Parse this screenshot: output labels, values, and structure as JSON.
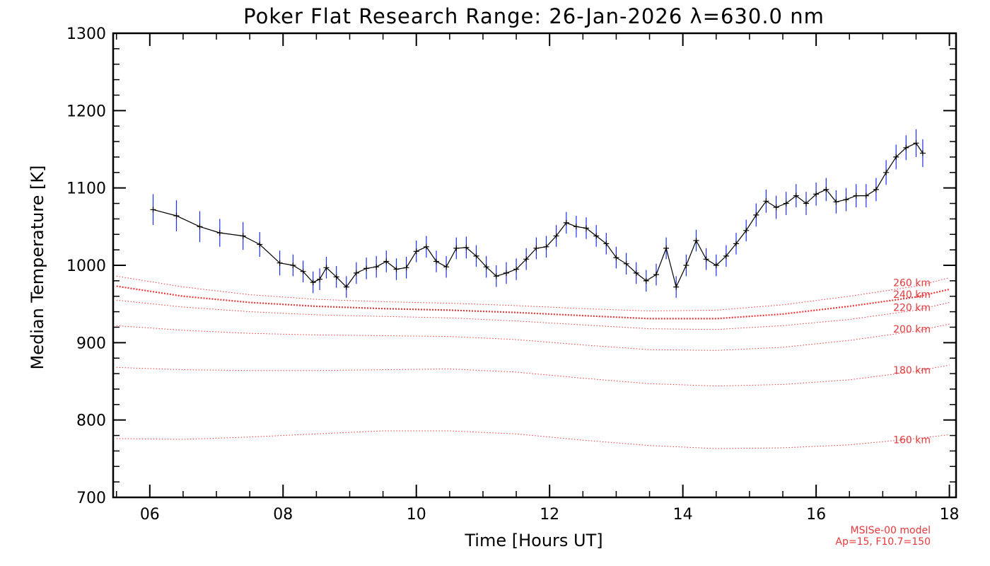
{
  "chart_data": {
    "type": "line",
    "title": "Poker Flat Research Range: 26-Jan-2026 λ=630.0 nm",
    "xlabel": "Time [Hours UT]",
    "ylabel": "Median Temperature [K]",
    "xlim": [
      5.45,
      18.1
    ],
    "ylim": [
      700,
      1300
    ],
    "xticks": [
      6,
      8,
      10,
      12,
      14,
      16,
      18
    ],
    "xtick_labels": [
      "06",
      "08",
      "10",
      "12",
      "14",
      "16",
      "18"
    ],
    "yticks": [
      700,
      800,
      900,
      1000,
      1100,
      1200,
      1300
    ],
    "ytick_labels": [
      "700",
      "800",
      "900",
      "1000",
      "1100",
      "1200",
      "1300"
    ],
    "model_note_line1": "MSISe-00 model",
    "model_note_line2": "Ap=15, F10.7=150",
    "colors": {
      "data": "#000000",
      "errorbar": "#1a2ff0",
      "model": "#e8383b"
    },
    "measured": {
      "name": "Median temperature",
      "x": [
        6.05,
        6.4,
        6.75,
        7.05,
        7.4,
        7.65,
        7.95,
        8.15,
        8.3,
        8.45,
        8.55,
        8.65,
        8.8,
        8.95,
        9.1,
        9.25,
        9.4,
        9.55,
        9.7,
        9.85,
        10.0,
        10.15,
        10.3,
        10.45,
        10.6,
        10.75,
        10.9,
        11.05,
        11.2,
        11.35,
        11.5,
        11.65,
        11.8,
        11.95,
        12.1,
        12.25,
        12.4,
        12.55,
        12.7,
        12.85,
        13.0,
        13.15,
        13.3,
        13.45,
        13.6,
        13.75,
        13.9,
        14.05,
        14.2,
        14.35,
        14.5,
        14.65,
        14.8,
        14.95,
        15.1,
        15.25,
        15.4,
        15.55,
        15.7,
        15.85,
        16.0,
        16.15,
        16.3,
        16.45,
        16.6,
        16.75,
        16.9,
        17.05,
        17.2,
        17.35,
        17.5,
        17.6
      ],
      "y": [
        1072,
        1064,
        1050,
        1042,
        1038,
        1027,
        1003,
        1000,
        992,
        978,
        982,
        997,
        985,
        972,
        990,
        996,
        998,
        1005,
        995,
        997,
        1018,
        1024,
        1005,
        998,
        1022,
        1023,
        1012,
        998,
        986,
        990,
        995,
        1008,
        1022,
        1024,
        1038,
        1055,
        1050,
        1048,
        1038,
        1028,
        1010,
        1002,
        990,
        980,
        988,
        1022,
        972,
        1000,
        1032,
        1008,
        1000,
        1012,
        1028,
        1045,
        1065,
        1083,
        1075,
        1080,
        1090,
        1080,
        1092,
        1098,
        1082,
        1085,
        1090,
        1090,
        1098,
        1120,
        1140,
        1152,
        1158,
        1145
      ],
      "error": [
        20,
        20,
        20,
        18,
        18,
        16,
        16,
        14,
        14,
        14,
        14,
        14,
        14,
        14,
        14,
        14,
        14,
        14,
        14,
        14,
        14,
        14,
        14,
        14,
        14,
        14,
        14,
        14,
        14,
        14,
        14,
        14,
        14,
        14,
        14,
        14,
        14,
        14,
        14,
        14,
        14,
        14,
        14,
        14,
        14,
        14,
        14,
        14,
        14,
        14,
        14,
        14,
        14,
        14,
        15,
        15,
        15,
        15,
        15,
        15,
        15,
        15,
        15,
        15,
        15,
        15,
        15,
        16,
        16,
        16,
        18,
        18
      ]
    },
    "model_series": [
      {
        "name": "160 km",
        "label": "160 km",
        "x": [
          5.5,
          6.5,
          7.5,
          8.5,
          9.5,
          10.5,
          11.5,
          12.5,
          13.5,
          14.5,
          15.5,
          16.5,
          17.5,
          18.0
        ],
        "values": [
          776,
          775,
          778,
          782,
          786,
          786,
          782,
          774,
          767,
          763,
          764,
          768,
          776,
          781
        ]
      },
      {
        "name": "180 km",
        "label": "180 km",
        "x": [
          5.5,
          6.5,
          7.5,
          8.5,
          9.5,
          10.5,
          11.5,
          12.5,
          13.5,
          14.5,
          15.5,
          16.5,
          17.5,
          18.0
        ],
        "values": [
          868,
          865,
          864,
          864,
          865,
          866,
          862,
          854,
          847,
          844,
          846,
          852,
          863,
          871
        ]
      },
      {
        "name": "200 km",
        "label": "200 km",
        "x": [
          5.5,
          6.5,
          7.5,
          8.5,
          9.5,
          10.5,
          11.5,
          12.5,
          13.5,
          14.5,
          15.5,
          16.5,
          17.5,
          18.0
        ],
        "values": [
          922,
          916,
          912,
          910,
          909,
          908,
          904,
          897,
          891,
          890,
          894,
          903,
          915,
          924
        ]
      },
      {
        "name": "220 km",
        "label": "220 km",
        "x": [
          5.5,
          6.5,
          7.5,
          8.5,
          9.5,
          10.5,
          11.5,
          12.5,
          13.5,
          14.5,
          15.5,
          16.5,
          17.5,
          18.0
        ],
        "values": [
          955,
          946,
          940,
          936,
          934,
          932,
          928,
          923,
          918,
          917,
          922,
          930,
          942,
          952
        ]
      },
      {
        "name": "240 km",
        "label": "240 km",
        "x": [
          5.5,
          6.5,
          7.5,
          8.5,
          9.5,
          10.5,
          11.5,
          12.5,
          13.5,
          14.5,
          15.5,
          16.5,
          17.5,
          18.0
        ],
        "values": [
          973,
          960,
          952,
          947,
          944,
          942,
          939,
          935,
          931,
          931,
          937,
          947,
          959,
          969
        ]
      },
      {
        "name": "260 km",
        "label": "260 km",
        "x": [
          5.5,
          6.5,
          7.5,
          8.5,
          9.5,
          10.5,
          11.5,
          12.5,
          13.5,
          14.5,
          15.5,
          16.5,
          17.5,
          18.0
        ],
        "values": [
          986,
          972,
          962,
          956,
          953,
          951,
          948,
          944,
          941,
          942,
          949,
          960,
          973,
          984
        ]
      }
    ]
  }
}
